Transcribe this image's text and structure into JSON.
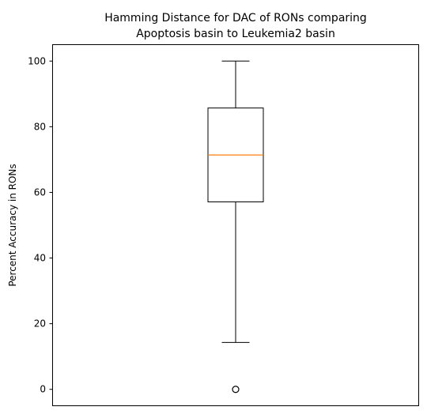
{
  "chart_data": {
    "type": "box",
    "title": [
      "Hamming Distance for DAC of RONs comparing",
      "Apoptosis basin to Leukemia2 basin"
    ],
    "xlabel": "",
    "ylabel": "Percent Accuracy in RONs",
    "ylim": [
      -5,
      105
    ],
    "yticks": [
      0,
      20,
      40,
      60,
      80,
      100
    ],
    "grid": false,
    "box": {
      "whisker_low": 14.3,
      "q1": 57.1,
      "median": 71.4,
      "q3": 85.7,
      "whisker_high": 100,
      "outliers": [
        0
      ]
    },
    "colors": {
      "median": "#ff7f0e",
      "box": "#000000"
    }
  }
}
